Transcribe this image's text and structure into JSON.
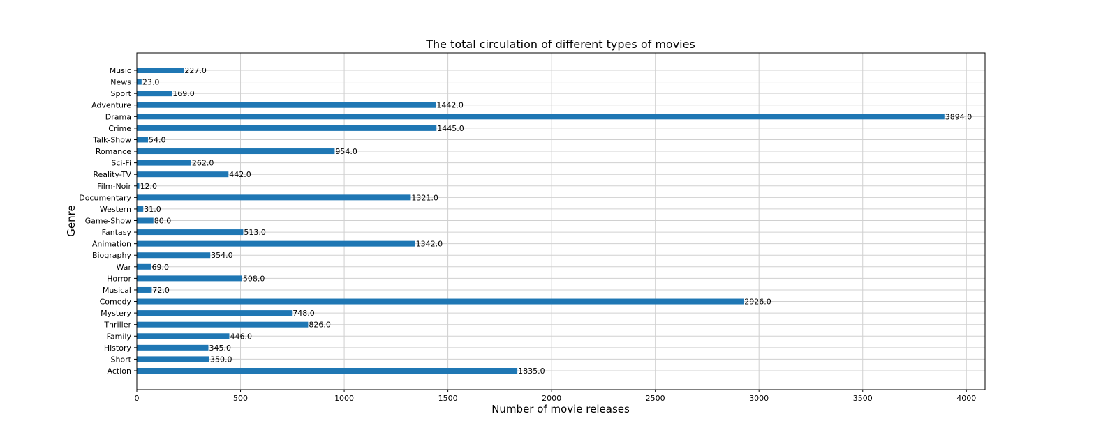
{
  "chart_data": {
    "type": "bar",
    "orientation": "horizontal",
    "title": "The total circulation of different types of movies",
    "xlabel": "Number of movie releases",
    "ylabel": "Genre",
    "xlim": [
      0,
      4090
    ],
    "xticks": [
      0,
      500,
      1000,
      1500,
      2000,
      2500,
      3000,
      3500,
      4000
    ],
    "grid": true,
    "bar_color": "#1f77b4",
    "categories": [
      "Action",
      "Short",
      "History",
      "Family",
      "Thriller",
      "Mystery",
      "Comedy",
      "Musical",
      "Horror",
      "War",
      "Biography",
      "Animation",
      "Fantasy",
      "Game-Show",
      "Western",
      "Documentary",
      "Film-Noir",
      "Reality-TV",
      "Sci-Fi",
      "Romance",
      "Talk-Show",
      "Crime",
      "Drama",
      "Adventure",
      "Sport",
      "News",
      "Music"
    ],
    "values": [
      1835,
      350,
      345,
      446,
      826,
      748,
      2926,
      72,
      508,
      69,
      354,
      1342,
      513,
      80,
      31,
      1321,
      12,
      442,
      262,
      954,
      54,
      1445,
      3894,
      1442,
      169,
      23,
      227
    ],
    "data_labels": [
      "1835.0",
      "350.0",
      "345.0",
      "446.0",
      "826.0",
      "748.0",
      "2926.0",
      "72.0",
      "508.0",
      "69.0",
      "354.0",
      "1342.0",
      "513.0",
      "80.0",
      "31.0",
      "1321.0",
      "12.0",
      "442.0",
      "262.0",
      "954.0",
      "54.0",
      "1445.0",
      "3894.0",
      "1442.0",
      "169.0",
      "23.0",
      "227.0"
    ]
  }
}
